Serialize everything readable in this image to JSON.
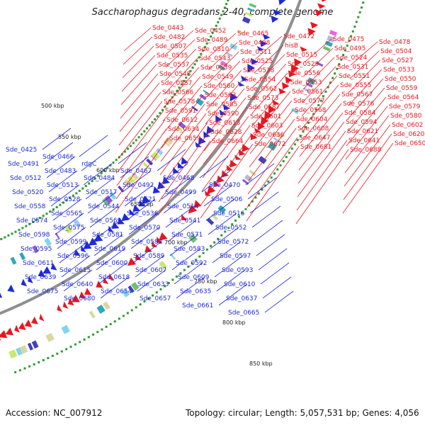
{
  "title": "Saccharophagus degradans 2-40, complete genome",
  "accession": "Accession: NC_007912",
  "topology": "Topology: circular; Length: 5,057,531 bp; Genes: 4,056",
  "colors": {
    "forward": "#e8171f",
    "reverse": "#1f2ad8",
    "backbone": "#8f8f8f",
    "gc_tick": "#2f9a2f"
  },
  "kbp_labels": [
    "500 kbp",
    "550 kbp",
    "600 kbp",
    "650 kbp",
    "700 kbp",
    "750 kbp",
    "800 kbp",
    "850 kbp"
  ],
  "forward_genes": [
    "Sde_0443",
    "Sde_0452",
    "Sde_0465",
    "Sde_0472",
    "Sde_0475",
    "Sde_0478",
    "Sde_0482",
    "Sde_0489",
    "Sde_0498",
    "hisB",
    "Sde_0495",
    "Sde_0504",
    "Sde_0507",
    "Sde_0510",
    "Sde_0511",
    "Sde_0515",
    "Sde_0524",
    "Sde_0527",
    "Sde_0535",
    "Sde_0543",
    "Sde_0525",
    "Sde_0529",
    "Sde_0531",
    "Sde_0533",
    "Sde_0537",
    "Sde_0539",
    "Sde_0538",
    "Sde_0556",
    "Sde_0551",
    "Sde_0550",
    "Sde_0548",
    "Sde_0549",
    "Sde_0554",
    "Sde_0553",
    "Sde_0555",
    "Sde_0559",
    "Sde_0557",
    "Sde_0560",
    "Sde_0562",
    "Sde_0561",
    "Sde_0567",
    "Sde_0564",
    "Sde_0566",
    "Sde_0563",
    "Sde_0573",
    "Sde_0577",
    "Sde_0576",
    "Sde_0579",
    "Sde_0578",
    "Sde_0585",
    "Sde_0587",
    "Sde_0568",
    "Sde_0584",
    "Sde_0580",
    "Sde_0591",
    "Sde_0590",
    "Sde_0601",
    "Sde_0604",
    "Sde_0594",
    "Sde_0602",
    "Sde_0612",
    "Sde_0613",
    "Sde_0603",
    "Sde_0608",
    "Sde_0621",
    "Sde_0620",
    "Sde_0634",
    "Sde_0628",
    "Sde_0636",
    "Sde_0647",
    "Sde_0641",
    "Sde_0650",
    "Sde_0659",
    "Sde_0664",
    "Sde_0672",
    "Sde_0681",
    "Sde_0688"
  ],
  "reverse_genes": [
    "Sde_0425",
    "Sde_0466",
    "rdgC",
    "Sde_0467",
    "Sde_0468",
    "Sde_0470",
    "Sde_0491",
    "Sde_0483",
    "Sde_0484",
    "Sde_0492",
    "Sde_0499",
    "Sde_0506",
    "Sde_0512",
    "Sde_0513",
    "Sde_0517",
    "Sde_0521",
    "Sde_0514",
    "Sde_0516",
    "Sde_0520",
    "Sde_0528",
    "Sde_0544",
    "Sde_0536",
    "Sde_0541",
    "Sde_0552",
    "Sde_0558",
    "Sde_0565",
    "Sde_0569",
    "Sde_0570",
    "Sde_0571",
    "Sde_0572",
    "Sde_0574",
    "Sde_0575",
    "Sde_0581",
    "Sde_0582",
    "Sde_0583",
    "Sde_0597",
    "Sde_0598",
    "Sde_0599",
    "Sde_0619",
    "Sde_0589",
    "Sde_0592",
    "Sde_0593",
    "Sde_0595",
    "Sde_0596",
    "Sde_0600",
    "Sde_0607",
    "Sde_0609",
    "Sde_0610",
    "Sde_0611",
    "Sde_0615",
    "Sde_0618",
    "Sde_0633",
    "Sde_0635",
    "Sde_0637",
    "Sde_0639",
    "Sde_0640",
    "Sde_0654",
    "Sde_0657",
    "Sde_0661",
    "Sde_0665",
    "Sde_0675",
    "Sde_0680"
  ]
}
